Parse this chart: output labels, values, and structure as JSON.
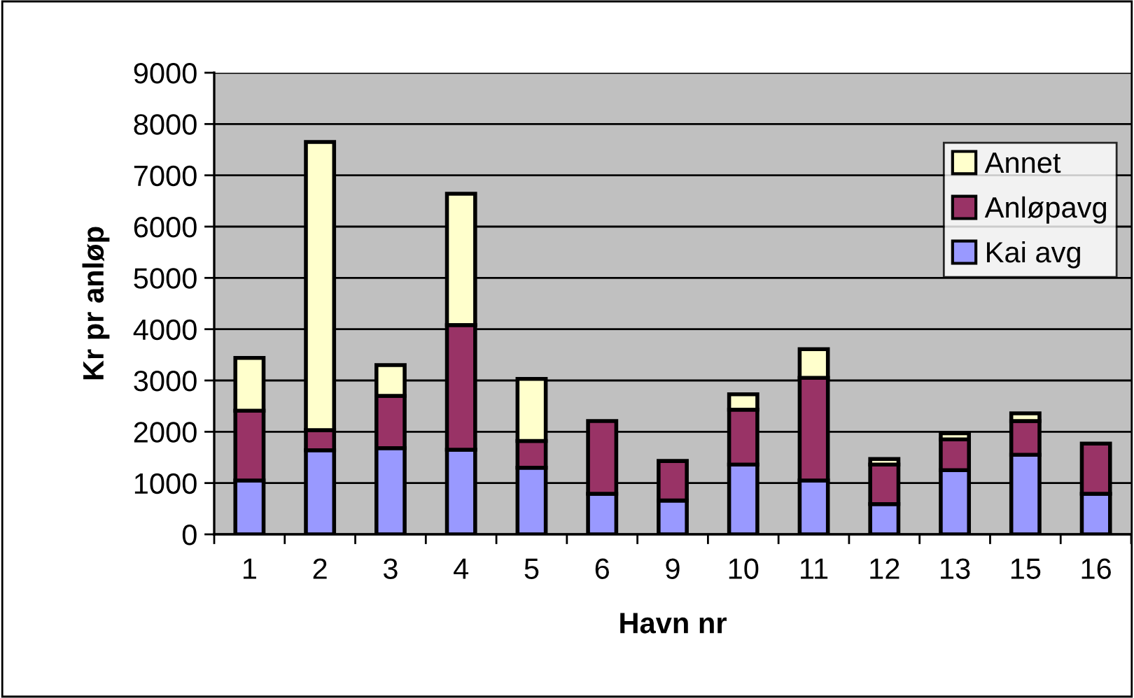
{
  "chart_data": {
    "type": "bar",
    "stacked": true,
    "xlabel": "Havn nr",
    "ylabel": "Kr pr anløp",
    "categories": [
      "1",
      "2",
      "3",
      "4",
      "5",
      "6",
      "9",
      "10",
      "11",
      "12",
      "13",
      "15",
      "16"
    ],
    "series": [
      {
        "name": "Kai avg",
        "color": "#9999ff",
        "values": [
          1050,
          1640,
          1680,
          1650,
          1300,
          790,
          660,
          1360,
          1050,
          590,
          1250,
          1550,
          790
        ]
      },
      {
        "name": "Anløpavg",
        "color": "#993366",
        "values": [
          1360,
          390,
          1020,
          2430,
          520,
          1420,
          770,
          1070,
          2000,
          770,
          600,
          660,
          980
        ]
      },
      {
        "name": "Annet",
        "color": "#ffffcc",
        "values": [
          1030,
          5620,
          600,
          2560,
          1210,
          null,
          null,
          300,
          560,
          110,
          120,
          150,
          null
        ]
      }
    ],
    "ylim": [
      0,
      9000
    ],
    "yticks": [
      0,
      1000,
      2000,
      3000,
      4000,
      5000,
      6000,
      7000,
      8000,
      9000
    ],
    "grid": "y",
    "legend": "top right"
  }
}
